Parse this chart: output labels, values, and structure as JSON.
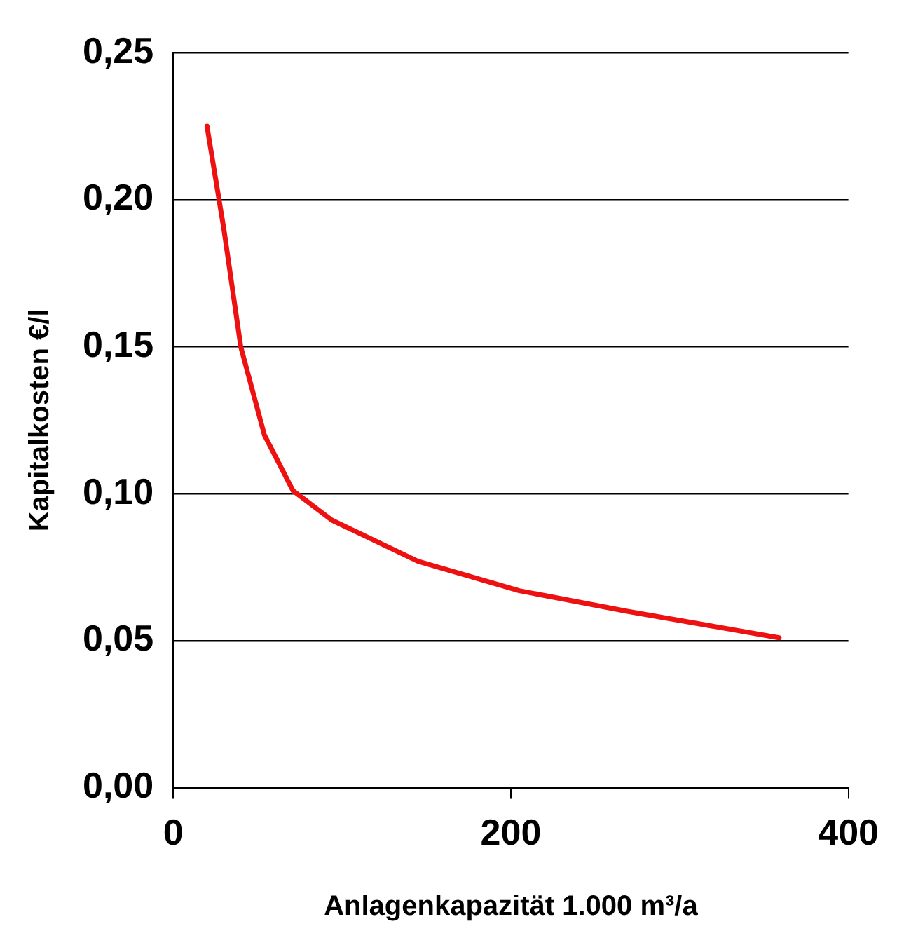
{
  "chart_data": {
    "type": "line",
    "xlabel": "Anlagenkapazität 1.000 m³/a",
    "ylabel": "Kapitalkosten €/l",
    "x": [
      20,
      30,
      40,
      54,
      71,
      94,
      145,
      205,
      269,
      359
    ],
    "series": [
      {
        "color": "#ee1111",
        "values": [
          0.225,
          0.19,
          0.15,
          0.12,
          0.101,
          0.091,
          0.077,
          0.067,
          0.06,
          0.051
        ]
      }
    ],
    "xlim": [
      0,
      400
    ],
    "xticks": [
      0,
      200,
      400
    ],
    "ylim": [
      0,
      0.25
    ],
    "yticks": [
      {
        "value": 0,
        "label": "0,00"
      },
      {
        "value": 0.05,
        "label": "0,05"
      },
      {
        "value": 0.1,
        "label": "0,10"
      },
      {
        "value": 0.15,
        "label": "0,15"
      },
      {
        "value": 0.2,
        "label": "0,20"
      },
      {
        "value": 0.25,
        "label": "0,25"
      }
    ],
    "grid": "y",
    "legend": false,
    "marker": "none",
    "line_style": "solid"
  }
}
